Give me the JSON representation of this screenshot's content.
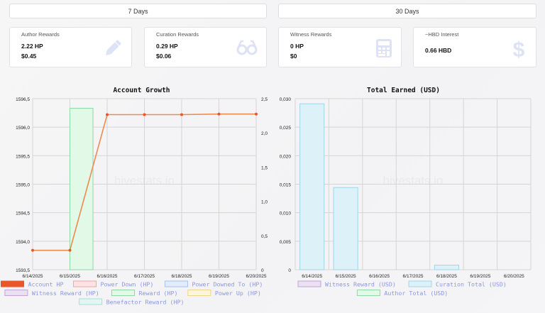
{
  "periods": [
    "7 Days",
    "30 Days"
  ],
  "cards": [
    {
      "label": "Author Rewards",
      "line1": "2.22 HP",
      "line2": "$0.45",
      "icon": "pencil-icon"
    },
    {
      "label": "Curation Rewards",
      "line1": "0.29 HP",
      "line2": "$0.06",
      "icon": "glasses-icon"
    },
    {
      "label": "Witness Rewards",
      "line1": "0 HP",
      "line2": "$0",
      "icon": "calculator-icon"
    },
    {
      "label": "~HBD Interest",
      "line1": "0.66 HBD",
      "line2": "",
      "icon": "dollar-icon"
    }
  ],
  "watermark": "hivestats.io",
  "colors": {
    "accent": "#e8562a",
    "line": "#ef8a4e",
    "reward_fill": "#e2f9e8",
    "reward_stroke": "#8fd9a3",
    "usd_fill": "#dcf1f8",
    "usd_stroke": "#9ed6e8",
    "legend_text": "#8a96e0",
    "icon": "#dde3f5"
  },
  "chart_data": [
    {
      "type": "line",
      "title": "Account Growth",
      "categories": [
        "6/14/2025",
        "6/15/2025",
        "6/16/2025",
        "6/17/2025",
        "6/18/2025",
        "6/19/2025",
        "6/20/2025"
      ],
      "y_ticks": [
        "1596,5",
        "1596,0",
        "1595,5",
        "1595,0",
        "1594,5",
        "1594,0",
        "1593,5"
      ],
      "y2_ticks": [
        "2,5",
        "2,0",
        "1,5",
        "1,0",
        "0,5",
        "0"
      ],
      "ylim": [
        1593.5,
        1596.5
      ],
      "y2lim": [
        0,
        2.5
      ],
      "grid": true,
      "series": [
        {
          "name": "Account HP",
          "kind": "line",
          "axis": "left",
          "values": [
            1593.84,
            1593.84,
            1596.22,
            1596.22,
            1596.22,
            1596.23,
            1596.23
          ]
        },
        {
          "name": "Reward (HP)",
          "kind": "bar",
          "axis": "right",
          "values": [
            0,
            2.36,
            0,
            0,
            0,
            0,
            0
          ]
        }
      ],
      "legend": [
        {
          "label": "Account HP",
          "fill": "#e8562a",
          "stroke": "#e8562a"
        },
        {
          "label": "Power Down (HP)",
          "fill": "#fde3e3",
          "stroke": "#f3a3a3"
        },
        {
          "label": "Power Downed To (HP)",
          "fill": "#e2ecfb",
          "stroke": "#a7c3ef"
        },
        {
          "label": "Witness Reward (HP)",
          "fill": "#ebe0f2",
          "stroke": "#c2a5d6"
        },
        {
          "label": "Reward (HP)",
          "fill": "#e2f9e8",
          "stroke": "#8fd9a3"
        },
        {
          "label": "Power Up (HP)",
          "fill": "#fdf5dc",
          "stroke": "#ecd58a"
        },
        {
          "label": "Benefactor Reward (HP)",
          "fill": "#e2f7f2",
          "stroke": "#a5e2d4"
        }
      ],
      "legend_placement": "bottom"
    },
    {
      "type": "bar",
      "title": "Total Earned (USD)",
      "categories": [
        "6/14/2025",
        "6/15/2025",
        "6/16/2025",
        "6/17/2025",
        "6/18/2025",
        "6/19/2025",
        "6/20/2025"
      ],
      "y_ticks": [
        "0,030",
        "0,025",
        "0,020",
        "0,015",
        "0,010",
        "0,005",
        "0"
      ],
      "ylim": [
        0,
        0.03
      ],
      "grid": true,
      "series": [
        {
          "name": "Curation Total (USD)",
          "values": [
            0.0291,
            0.0144,
            0,
            0,
            0.0008,
            0,
            0
          ]
        }
      ],
      "legend": [
        {
          "label": "Witness Reward (USD)",
          "fill": "#ebe0f2",
          "stroke": "#c2a5d6"
        },
        {
          "label": "Curation Total (USD)",
          "fill": "#dcf1f8",
          "stroke": "#9ed6e8"
        },
        {
          "label": "Author Total (USD)",
          "fill": "#e2f9e8",
          "stroke": "#8fd9a3"
        }
      ],
      "legend_placement": "bottom"
    }
  ]
}
